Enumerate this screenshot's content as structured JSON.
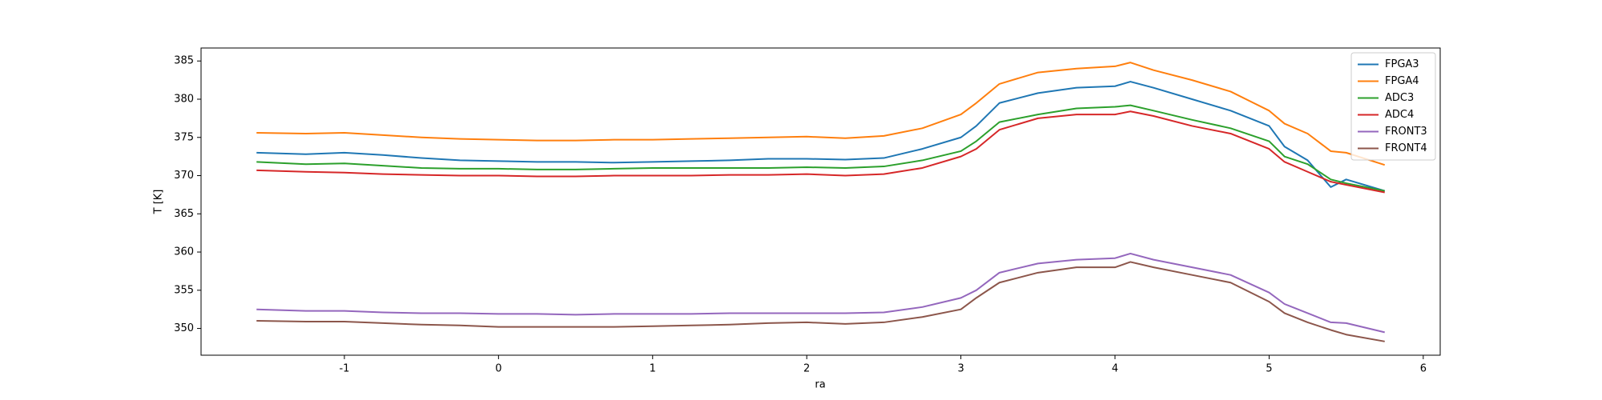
{
  "chart_data": {
    "type": "line",
    "x_label": "ra",
    "y_label": "T [K]",
    "x": [
      -1.57,
      -1.25,
      -1.0,
      -0.75,
      -0.5,
      -0.25,
      0,
      0.25,
      0.5,
      0.75,
      1.0,
      1.25,
      1.5,
      1.75,
      2.0,
      2.25,
      2.5,
      2.75,
      3.0,
      3.1,
      3.25,
      3.5,
      3.75,
      4.0,
      4.1,
      4.25,
      4.5,
      4.75,
      5.0,
      5.1,
      5.25,
      5.4,
      5.5,
      5.75
    ],
    "series": [
      {
        "name": "FPGA3",
        "color": "#1f77b4",
        "values": [
          373,
          372.8,
          373,
          372.7,
          372.3,
          372,
          371.9,
          371.8,
          371.8,
          371.7,
          371.8,
          371.9,
          372,
          372.2,
          372.2,
          372.1,
          372.3,
          373.5,
          375,
          376.5,
          379.5,
          380.8,
          381.5,
          381.7,
          382.3,
          381.5,
          380,
          378.5,
          376.5,
          373.8,
          372,
          368.5,
          369.5,
          368
        ]
      },
      {
        "name": "FPGA4",
        "color": "#ff7f0e",
        "values": [
          375.6,
          375.5,
          375.6,
          375.3,
          375,
          374.8,
          374.7,
          374.6,
          374.6,
          374.7,
          374.7,
          374.8,
          374.9,
          375,
          375.1,
          374.9,
          375.2,
          376.2,
          378,
          379.5,
          382,
          383.5,
          384,
          384.3,
          384.8,
          383.8,
          382.5,
          381,
          378.5,
          376.8,
          375.5,
          373.2,
          373,
          371.4
        ]
      },
      {
        "name": "ADC3",
        "color": "#2ca02c",
        "values": [
          371.8,
          371.5,
          371.6,
          371.3,
          371,
          370.9,
          370.9,
          370.8,
          370.8,
          370.9,
          371,
          371,
          371,
          371,
          371.1,
          371,
          371.2,
          372,
          373.2,
          374.5,
          377,
          378,
          378.8,
          379,
          379.2,
          378.5,
          377.3,
          376.2,
          374.5,
          372.5,
          371.5,
          369.5,
          369,
          368
        ]
      },
      {
        "name": "ADC4",
        "color": "#d62728",
        "values": [
          370.7,
          370.5,
          370.4,
          370.2,
          370.1,
          370,
          370,
          369.9,
          369.9,
          370,
          370,
          370,
          370.1,
          370.1,
          370.2,
          370,
          370.2,
          371,
          372.5,
          373.5,
          376,
          377.5,
          378,
          378,
          378.4,
          377.8,
          376.5,
          375.5,
          373.5,
          371.8,
          370.5,
          369.2,
          368.8,
          367.8
        ]
      },
      {
        "name": "FRONT3",
        "color": "#9467bd",
        "values": [
          352.5,
          352.3,
          352.3,
          352.1,
          352,
          352,
          351.9,
          351.9,
          351.8,
          351.9,
          351.9,
          351.9,
          352,
          352,
          352,
          352,
          352.1,
          352.8,
          354,
          355,
          357.3,
          358.5,
          359,
          359.2,
          359.8,
          359,
          358,
          357,
          354.7,
          353.2,
          352,
          350.8,
          350.7,
          349.5
        ]
      },
      {
        "name": "FRONT4",
        "color": "#8c564b",
        "values": [
          351,
          350.9,
          350.9,
          350.7,
          350.5,
          350.4,
          350.2,
          350.2,
          350.2,
          350.2,
          350.3,
          350.4,
          350.5,
          350.7,
          350.8,
          350.6,
          350.8,
          351.5,
          352.5,
          354,
          356,
          357.3,
          358,
          358,
          358.7,
          358,
          357,
          356,
          353.5,
          352,
          350.8,
          349.8,
          349.2,
          348.3
        ]
      }
    ],
    "xlim": [
      -1.93,
      6.11
    ],
    "xticks": [
      -1,
      0,
      1,
      2,
      3,
      4,
      5,
      6
    ],
    "ylim": [
      346.5,
      386.7
    ],
    "yticks": [
      350,
      355,
      360,
      365,
      370,
      375,
      380,
      385
    ],
    "legend": "upper right",
    "grid": false
  }
}
